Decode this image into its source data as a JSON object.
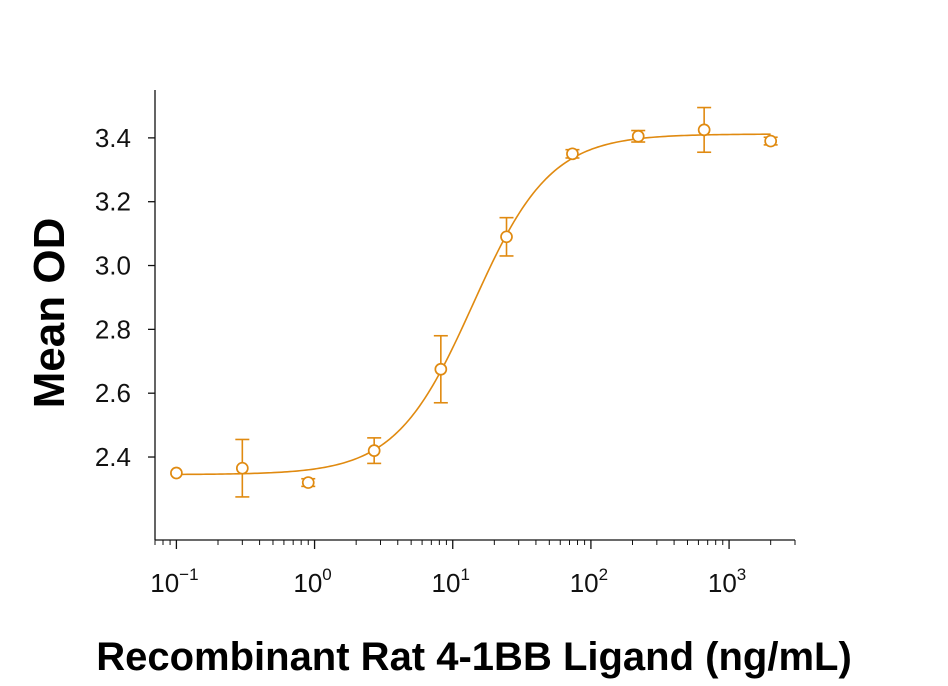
{
  "chart_data": {
    "type": "scatter",
    "xlabel": "Recombinant Rat 4-1BB Ligand (ng/mL)",
    "ylabel": "Mean OD",
    "x_scale": "log",
    "xlim": [
      0.07,
      3000
    ],
    "ylim": [
      2.14,
      3.55
    ],
    "x_ticks": [
      {
        "value": 0.1,
        "base": "10",
        "exp": "−1"
      },
      {
        "value": 1,
        "base": "10",
        "exp": "0"
      },
      {
        "value": 10,
        "base": "10",
        "exp": "1"
      },
      {
        "value": 100,
        "base": "10",
        "exp": "2"
      },
      {
        "value": 1000,
        "base": "10",
        "exp": "3"
      }
    ],
    "y_ticks": [
      2.4,
      2.6,
      2.8,
      3.0,
      3.2,
      3.4
    ],
    "y_tick_labels": [
      "2.4",
      "2.6",
      "2.8",
      "3.0",
      "3.2",
      "3.4"
    ],
    "series": [
      {
        "color": "#e08a10",
        "marker": "open-circle",
        "points": [
          {
            "x": 0.1,
            "y": 2.35,
            "err": 0.0
          },
          {
            "x": 0.3,
            "y": 2.365,
            "err": 0.09
          },
          {
            "x": 0.9,
            "y": 2.32,
            "err": 0.012
          },
          {
            "x": 2.7,
            "y": 2.42,
            "err": 0.04
          },
          {
            "x": 8.2,
            "y": 2.675,
            "err": 0.105
          },
          {
            "x": 24.5,
            "y": 3.09,
            "err": 0.06
          },
          {
            "x": 73.5,
            "y": 3.35,
            "err": 0.013
          },
          {
            "x": 220,
            "y": 3.405,
            "err": 0.018
          },
          {
            "x": 660,
            "y": 3.425,
            "err": 0.07
          },
          {
            "x": 2000,
            "y": 3.39,
            "err": 0.012
          }
        ],
        "fit": {
          "model": "4PL",
          "bottom": 2.345,
          "top": 3.412,
          "ec50": 14,
          "hill": 1.55
        }
      }
    ],
    "grid": false,
    "legend": "none"
  }
}
